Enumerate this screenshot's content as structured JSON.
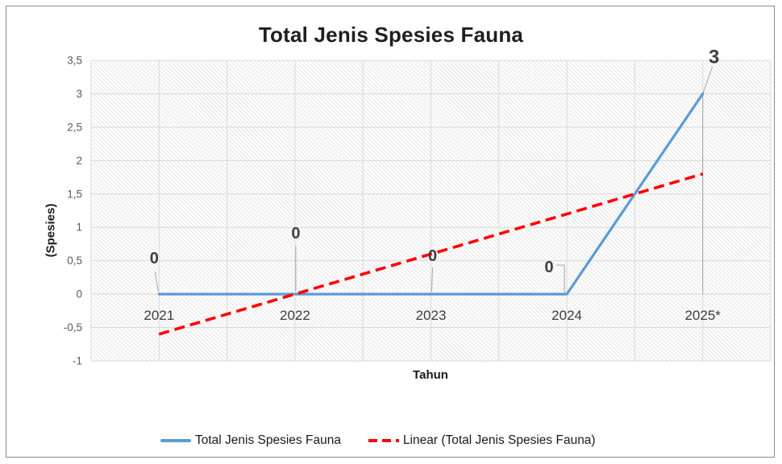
{
  "chart_data": {
    "type": "line",
    "title": "Total Jenis Spesies Fauna",
    "xlabel": "Tahun",
    "ylabel": "(Spesies)",
    "categories": [
      "2021",
      "2022",
      "2023",
      "2024",
      "2025*"
    ],
    "series": [
      {
        "name": "Total Jenis Spesies Fauna",
        "values": [
          0,
          0,
          0,
          0,
          3
        ],
        "color": "#5B9BD5",
        "style": "solid"
      }
    ],
    "trendline": {
      "name": "Linear (Total Jenis Spesies Fauna)",
      "color": "#FF0000",
      "style": "dashed",
      "values_at_ends": [
        -0.6,
        1.8
      ]
    },
    "data_labels": [
      "0",
      "0",
      "0",
      "0",
      "3"
    ],
    "yticks": [
      "3,5",
      "3",
      "2,5",
      "2",
      "1,5",
      "1",
      "0,5",
      "0",
      "-0,5",
      "-1"
    ],
    "ytick_values": [
      3.5,
      3,
      2.5,
      2,
      1.5,
      1,
      0.5,
      0,
      -0.5,
      -1
    ],
    "ylim": [
      -1,
      3.5
    ],
    "grid": "horizontal every 0.5 and vertical half-category, light gray, hatched plot background",
    "legend_position": "bottom",
    "colors": {
      "series": "#5B9BD5",
      "trendline": "#FF0000",
      "gridline": "#D9D9D9",
      "hatch": "#E4E4E4",
      "leader_line": "#A6A6A6"
    }
  }
}
